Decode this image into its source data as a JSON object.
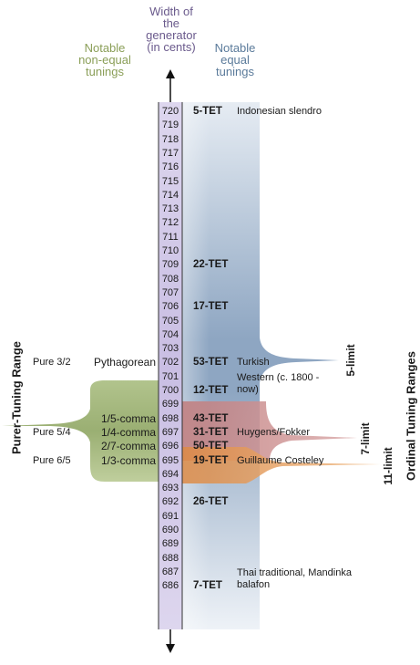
{
  "header": {
    "non_equal_line1": "Notable",
    "non_equal_line2": "non-equal",
    "non_equal_line3": "tunings",
    "generator_line1": "Width of",
    "generator_line2": "the",
    "generator_line3": "generator",
    "generator_line4": "(in cents)",
    "equal_line1": "Notable",
    "equal_line2": "equal",
    "equal_line3": "tunings"
  },
  "cents": [
    "720",
    "719",
    "718",
    "717",
    "716",
    "715",
    "714",
    "713",
    "712",
    "711",
    "710",
    "709",
    "708",
    "707",
    "706",
    "705",
    "704",
    "703",
    "702",
    "701",
    "700",
    "699",
    "698",
    "697",
    "696",
    "695",
    "694",
    "693",
    "692",
    "691",
    "690",
    "689",
    "688",
    "687",
    "686"
  ],
  "equal_tunings": [
    {
      "cents": 720,
      "tet": "5-TET",
      "name": "Indonesian slendro"
    },
    {
      "cents": 709,
      "tet": "22-TET",
      "name": ""
    },
    {
      "cents": 706,
      "tet": "17-TET",
      "name": ""
    },
    {
      "cents": 702,
      "tet": "53-TET",
      "name": "Turkish"
    },
    {
      "cents": 700,
      "tet": "12-TET",
      "name": "Western (c. 1800 -\nnow)"
    },
    {
      "cents": 698,
      "tet": "43-TET",
      "name": ""
    },
    {
      "cents": 697,
      "tet": "31-TET",
      "name": "Huygens/Fokker"
    },
    {
      "cents": 696,
      "tet": "50-TET",
      "name": ""
    },
    {
      "cents": 695,
      "tet": "19-TET",
      "name": "Guillaume Costeley"
    },
    {
      "cents": 692,
      "tet": "26-TET",
      "name": ""
    },
    {
      "cents": 686,
      "tet": "7-TET",
      "name": "Thai traditional, Mandinka\nbalafon"
    }
  ],
  "non_equal_tunings": [
    {
      "cents": 702,
      "pure": "Pure 3/2",
      "name": "Pythagorean"
    },
    {
      "cents": 698,
      "pure": "",
      "name": "1/5-comma"
    },
    {
      "cents": 697,
      "pure": "Pure 5/4",
      "name": "1/4-comma"
    },
    {
      "cents": 696,
      "pure": "",
      "name": "2/7-comma"
    },
    {
      "cents": 695,
      "pure": "Pure 6/5",
      "name": "1/3-comma"
    }
  ],
  "labels": {
    "purer_range": "Purer-Tuning Range",
    "ordinal_range": "Ordinal Tuning Ranges",
    "limit5": "5-limit",
    "limit7": "7-limit",
    "limit11": "11-limit"
  },
  "colors": {
    "blue": "#8ea6c2",
    "green": "#98ad6e",
    "red": "#c88a8a",
    "orange": "#e6a060",
    "lavender": "#cfc6e6"
  }
}
